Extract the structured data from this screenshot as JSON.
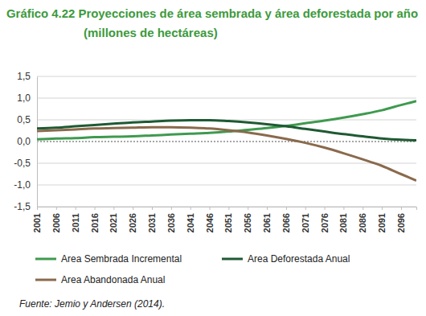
{
  "chart_data": {
    "type": "line",
    "title": "Gráfico 4.22 Proyecciones de área sembrada y área deforestada por año",
    "subtitle": "(millones de hectáreas)",
    "annotations": [
      "Fuente: Jemio y Andersen (2014)."
    ],
    "x": [
      2001,
      2006,
      2011,
      2016,
      2021,
      2026,
      2031,
      2036,
      2041,
      2046,
      2051,
      2056,
      2061,
      2066,
      2071,
      2076,
      2081,
      2086,
      2091,
      2096,
      2100
    ],
    "series": [
      {
        "name": "Area Sembrada Incremental",
        "color": "#3f9a4f",
        "values": [
          0.05,
          0.07,
          0.08,
          0.1,
          0.11,
          0.12,
          0.14,
          0.16,
          0.18,
          0.2,
          0.23,
          0.27,
          0.31,
          0.36,
          0.42,
          0.48,
          0.55,
          0.63,
          0.72,
          0.84,
          0.93
        ]
      },
      {
        "name": "Area Deforestada Anual",
        "color": "#1e5a33",
        "values": [
          0.3,
          0.32,
          0.35,
          0.38,
          0.41,
          0.44,
          0.46,
          0.48,
          0.49,
          0.49,
          0.47,
          0.44,
          0.4,
          0.35,
          0.29,
          0.23,
          0.17,
          0.12,
          0.07,
          0.04,
          0.03
        ]
      },
      {
        "name": "Area Abandonada Anual",
        "color": "#8a6a4c",
        "values": [
          0.24,
          0.26,
          0.28,
          0.3,
          0.31,
          0.32,
          0.33,
          0.33,
          0.32,
          0.3,
          0.26,
          0.21,
          0.14,
          0.06,
          -0.03,
          -0.14,
          -0.27,
          -0.41,
          -0.56,
          -0.75,
          -0.9
        ]
      }
    ],
    "xlim": [
      2001,
      2100
    ],
    "xticks": [
      2001,
      2006,
      2011,
      2016,
      2021,
      2026,
      2031,
      2036,
      2041,
      2046,
      2051,
      2056,
      2061,
      2066,
      2071,
      2076,
      2081,
      2086,
      2091,
      2096
    ],
    "ylim": [
      -1.5,
      1.5
    ],
    "yticks": [
      {
        "value": -1.5,
        "label": "-1,5"
      },
      {
        "value": -1.0,
        "label": "-1,0"
      },
      {
        "value": -0.5,
        "label": "-0,5"
      },
      {
        "value": 0,
        "label": "0,0"
      },
      {
        "value": 0.5,
        "label": "0,5"
      },
      {
        "value": 1.0,
        "label": "1,0"
      },
      {
        "value": 1.5,
        "label": "1,5"
      }
    ],
    "grid": true,
    "legend": "bottom",
    "marker": "none",
    "line_style": "solid"
  }
}
